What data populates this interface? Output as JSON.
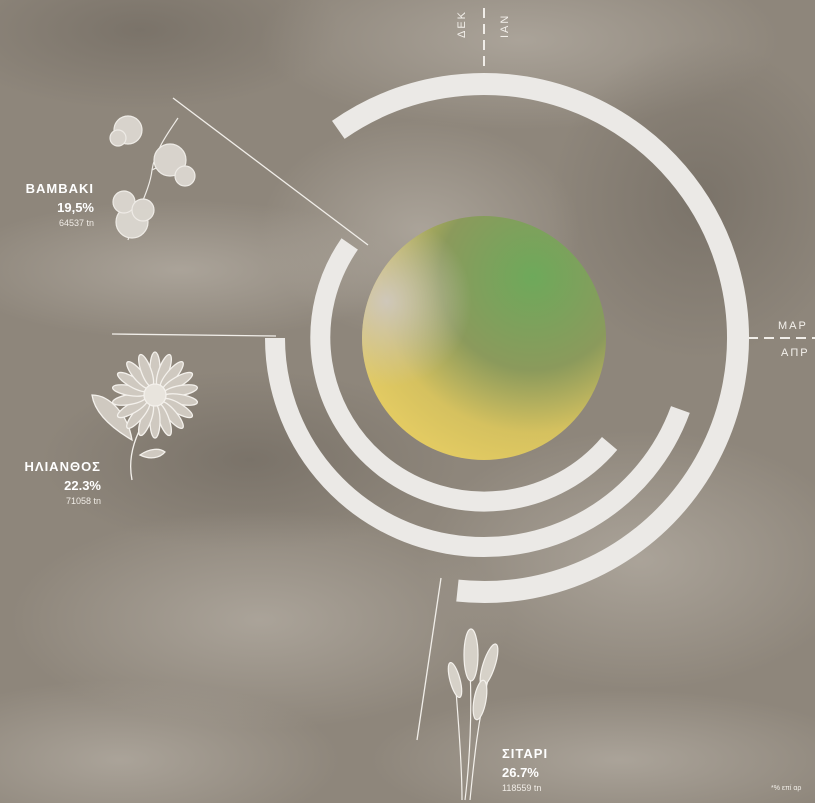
{
  "months": {
    "dec": "ΔΕΚ",
    "jan": "ΙΑΝ",
    "mar": "ΜΑΡ",
    "apr": "ΑΠΡ"
  },
  "footnote": "*% επί αρ",
  "colors": {
    "ring": "#ebe9e6",
    "sky": "#8d857a",
    "text": "#ffffff",
    "center_green": "#6aa25a",
    "center_yellow": "#e3cf61"
  },
  "icons": [
    "cotton-icon",
    "sunflower-icon",
    "wheat-icon"
  ],
  "chart_data": {
    "type": "radial-bar",
    "series": [
      {
        "name": "ΒΑΜΒΑΚΙ",
        "percent_label": "19,5%",
        "percent": 19.5,
        "tonnes_label": "64537 tn",
        "tonnes": 64537
      },
      {
        "name": "ΗΛΙΑΝΘΟΣ",
        "percent_label": "22.3%",
        "percent": 22.3,
        "tonnes_label": "71058 tn",
        "tonnes": 71058
      },
      {
        "name": "ΣΙΤΑΡΙ",
        "percent_label": "26.7%",
        "percent": 26.7,
        "tonnes_label": "118559 tn",
        "tonnes": 118559
      }
    ]
  }
}
